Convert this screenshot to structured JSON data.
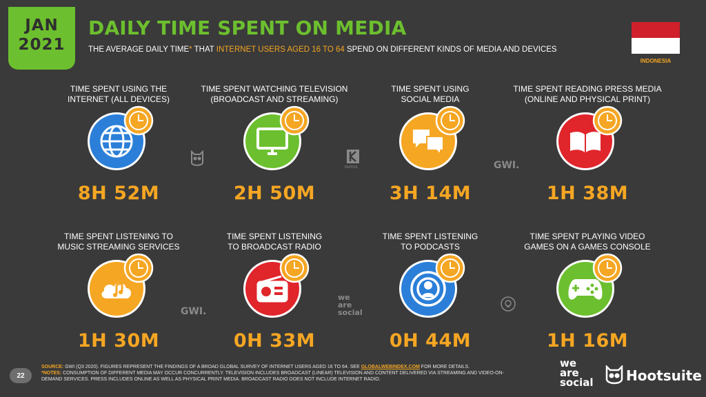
{
  "header": {
    "month": "JAN",
    "year": "2021",
    "title": "DAILY TIME SPENT ON MEDIA",
    "subtitle_part1": "THE AVERAGE DAILY TIME",
    "subtitle_star": "*",
    "subtitle_part2": " THAT ",
    "subtitle_highlight": "INTERNET USERS AGED 16 TO 64",
    "subtitle_part3": " SPEND ON DIFFERENT KINDS OF MEDIA AND DEVICES"
  },
  "country": {
    "name": "INDONESIA",
    "flag_colors": [
      "#d0202b",
      "#ffffff"
    ]
  },
  "colors": {
    "green": "#6cbf2e",
    "orange": "#f5a623",
    "blue": "#2b7fd8",
    "red": "#e0252b",
    "background": "#3a3a3a"
  },
  "metrics": [
    {
      "label_line1": "TIME SPENT USING THE",
      "label_line2": "INTERNET (ALL DEVICES)",
      "value": "8H 52M",
      "icon": "globe-icon",
      "color": "#2b7fd8"
    },
    {
      "label_line1": "TIME SPENT WATCHING TELEVISION",
      "label_line2": "(BROADCAST AND STREAMING)",
      "value": "2H 50M",
      "icon": "tv-icon",
      "color": "#6cbf2e"
    },
    {
      "label_line1": "TIME SPENT USING",
      "label_line2": "SOCIAL MEDIA",
      "value": "3H 14M",
      "icon": "chat-bubbles-icon",
      "color": "#f5a623"
    },
    {
      "label_line1": "TIME SPENT READING PRESS MEDIA",
      "label_line2": "(ONLINE AND PHYSICAL PRINT)",
      "value": "1H 38M",
      "icon": "book-icon",
      "color": "#e0252b"
    },
    {
      "label_line1": "TIME SPENT LISTENING TO",
      "label_line2": "MUSIC STREAMING SERVICES",
      "value": "1H 30M",
      "icon": "music-cloud-icon",
      "color": "#f5a623"
    },
    {
      "label_line1": "TIME SPENT LISTENING",
      "label_line2": "TO BROADCAST RADIO",
      "value": "0H 33M",
      "icon": "radio-icon",
      "color": "#e0252b"
    },
    {
      "label_line1": "TIME SPENT LISTENING",
      "label_line2": "TO PODCASTS",
      "value": "0H 44M",
      "icon": "podcast-icon",
      "color": "#2b7fd8"
    },
    {
      "label_line1": "TIME SPENT PLAYING VIDEO",
      "label_line2": "GAMES ON A GAMES CONSOLE",
      "value": "1H 16M",
      "icon": "gamepad-icon",
      "color": "#6cbf2e"
    }
  ],
  "watermarks": {
    "gwi": "GWI.",
    "kepios": "KEPIOS",
    "we_are_social": [
      "we",
      "are",
      "social"
    ]
  },
  "footer": {
    "page_number": "22",
    "source_label": "SOURCE:",
    "source_text_1": " GWI (Q3 2020). FIGURES REPRESENT THE FINDINGS OF A BROAD GLOBAL SURVEY OF INTERNET USERS AGED 16 TO 64. SEE ",
    "source_link": "GLOBALWEBINDEX.COM",
    "source_text_2": " FOR MORE DETAILS.",
    "notes_label": "*NOTES:",
    "notes_text": " CONSUMPTION OF DIFFERENT MEDIA MAY OCCUR CONCURRENTLY. TELEVISION INCLUDES BROADCAST (LINEAR) TELEVISION AND CONTENT DELIVERED VIA STREAMING AND VIDEO-ON-DEMAND SERVICES. PRESS INCLUDES ONLINE AS WELL AS PHYSICAL PRINT MEDIA. BROADCAST RADIO DOES NOT INCLUDE INTERNET RADIO."
  },
  "brands": {
    "we_are_social": [
      "we",
      "are",
      "social"
    ],
    "hootsuite": "Hootsuite"
  }
}
